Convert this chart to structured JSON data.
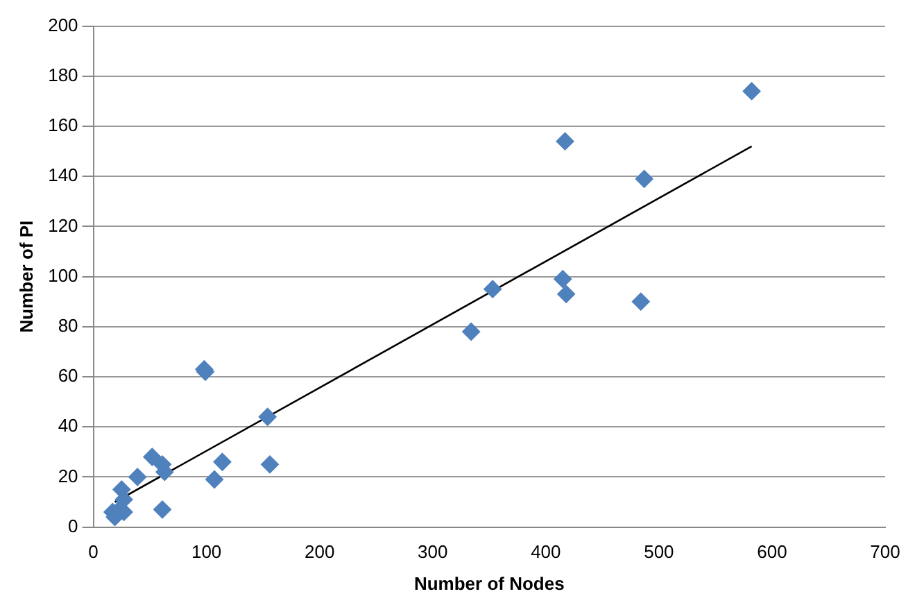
{
  "chart_data": {
    "type": "scatter",
    "xlabel": "Number of Nodes",
    "ylabel": "Number of PI",
    "xlim": [
      0,
      700
    ],
    "ylim": [
      0,
      200
    ],
    "xticks": [
      0,
      100,
      200,
      300,
      400,
      500,
      600,
      700
    ],
    "yticks": [
      0,
      20,
      40,
      60,
      80,
      100,
      120,
      140,
      160,
      180,
      200
    ],
    "grid": "y",
    "legend": false,
    "series": [
      {
        "type": "scatter",
        "marker": "diamond",
        "color": "#4f81bd",
        "x": [
          582,
          417,
          487,
          415,
          418,
          484,
          353,
          334,
          154,
          156,
          114,
          107,
          99,
          98,
          52,
          61,
          63,
          39,
          25,
          27,
          61,
          17,
          19,
          27,
          23
        ],
        "values": [
          174,
          154,
          139,
          99,
          93,
          90,
          95,
          78,
          44,
          25,
          26,
          19,
          62,
          63,
          28,
          25,
          22,
          20,
          15,
          11,
          7,
          6,
          4,
          6,
          7
        ]
      },
      {
        "type": "line",
        "marker": "none",
        "color": "#000000",
        "x": [
          19,
          582
        ],
        "values": [
          10,
          152
        ]
      }
    ]
  }
}
